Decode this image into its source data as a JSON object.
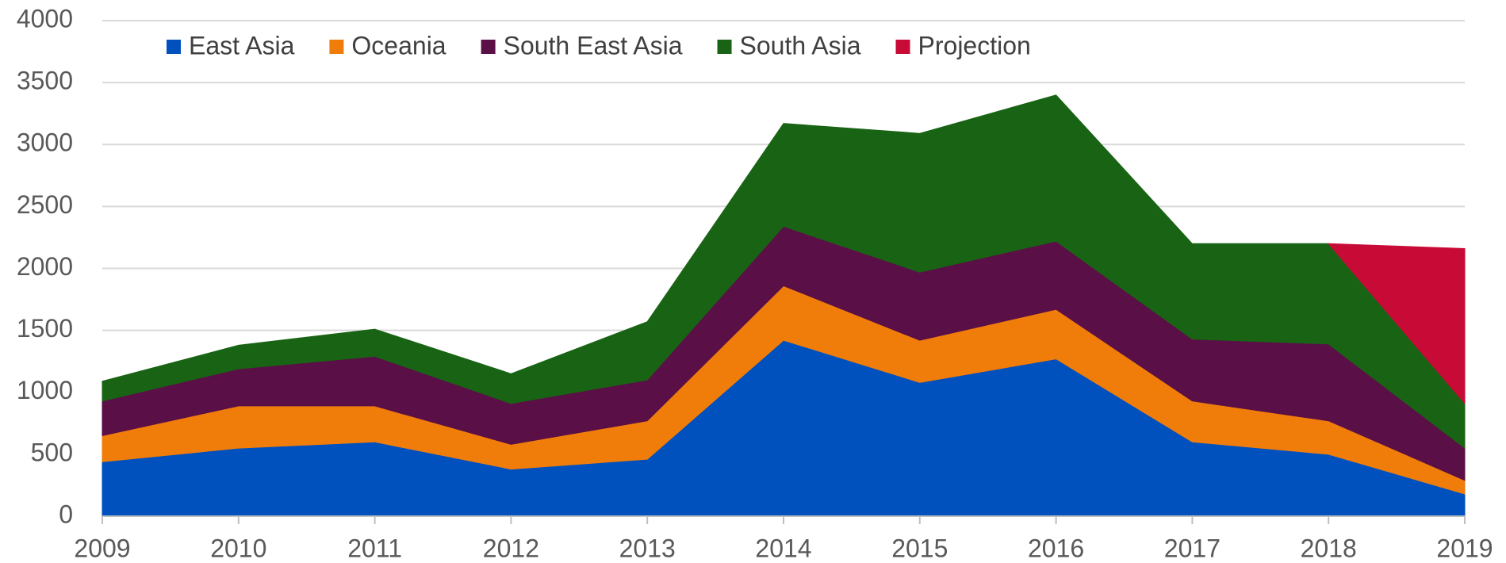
{
  "chart_data": {
    "type": "stacked_area",
    "x": [
      2009,
      2010,
      2011,
      2012,
      2013,
      2014,
      2015,
      2016,
      2017,
      2018,
      2019
    ],
    "xlim": [
      2009,
      2019
    ],
    "xticks": [
      2009,
      2010,
      2011,
      2012,
      2013,
      2014,
      2015,
      2016,
      2017,
      2018,
      2019
    ],
    "ylim": [
      0,
      4000
    ],
    "yticks": [
      0,
      500,
      1000,
      1500,
      2000,
      2500,
      3000,
      3500,
      4000
    ],
    "grid": true,
    "legend": "top",
    "series": [
      {
        "name": "East Asia",
        "color": "#0050be",
        "values": [
          440,
          550,
          600,
          380,
          460,
          1420,
          1080,
          1270,
          600,
          500,
          180
        ]
      },
      {
        "name": "Oceania",
        "color": "#f07d0a",
        "values": [
          210,
          340,
          290,
          200,
          310,
          440,
          340,
          400,
          330,
          270,
          110
        ]
      },
      {
        "name": "South East Asia",
        "color": "#5a0f46",
        "values": [
          280,
          300,
          400,
          330,
          330,
          480,
          550,
          550,
          500,
          620,
          260
        ]
      },
      {
        "name": "South Asia",
        "color": "#196414",
        "values": [
          160,
          190,
          220,
          240,
          470,
          830,
          1120,
          1180,
          770,
          810,
          360
        ]
      },
      {
        "name": "Projection",
        "color": "#c80a37",
        "values": [
          null,
          null,
          null,
          null,
          null,
          null,
          null,
          null,
          null,
          0,
          1250
        ]
      }
    ]
  }
}
